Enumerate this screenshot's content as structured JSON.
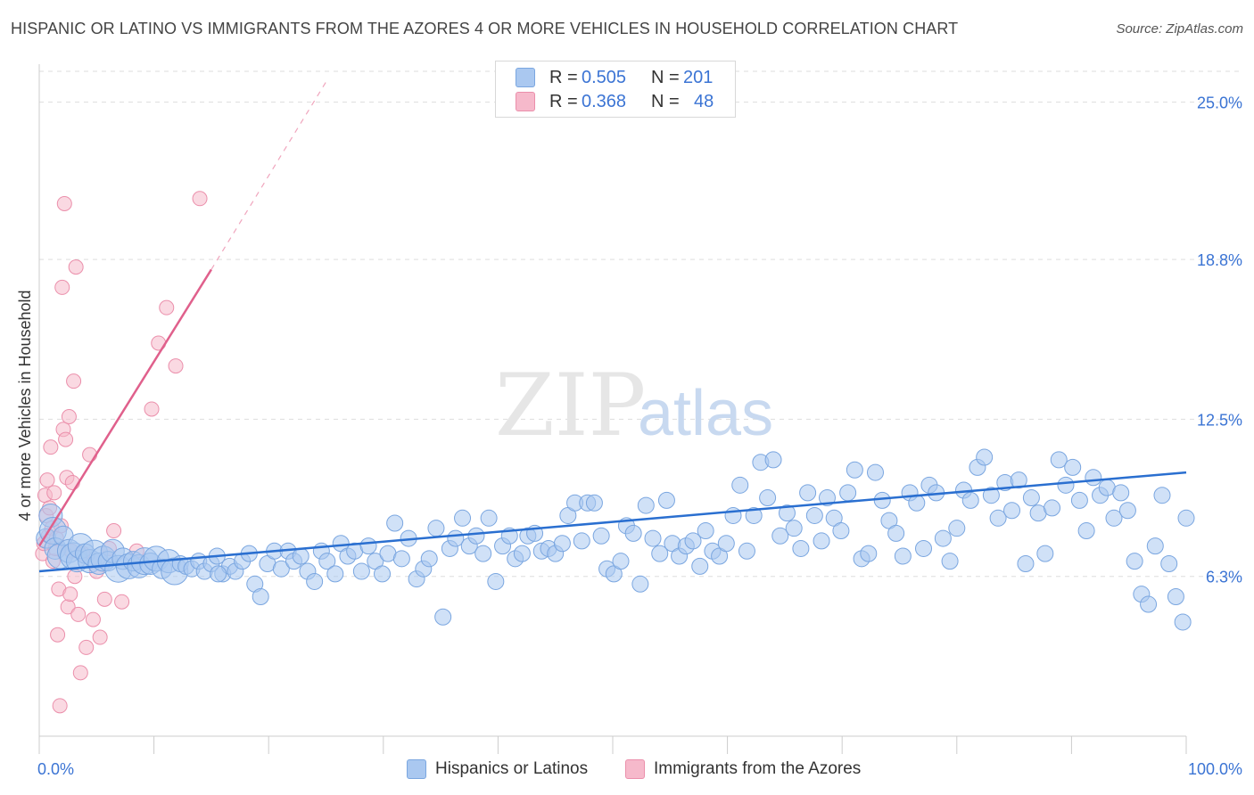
{
  "title": "HISPANIC OR LATINO VS IMMIGRANTS FROM THE AZORES 4 OR MORE VEHICLES IN HOUSEHOLD CORRELATION CHART",
  "source": "Source: ZipAtlas.com",
  "watermark": {
    "zip": "ZIP",
    "atlas": "atlas"
  },
  "colors": {
    "blue_fill": "#aac8f0",
    "blue_stroke": "#7aa6e0",
    "blue_line": "#2a6fd0",
    "pink_fill": "#f6b9cb",
    "pink_stroke": "#eb8fab",
    "pink_line": "#e0608c",
    "tick_label": "#3b74d4",
    "grid": "#dddddd"
  },
  "legend_top": [
    {
      "r_label": "R =",
      "r_value": "0.505",
      "n_label": "N =",
      "n_value": "201",
      "color": "blue"
    },
    {
      "r_label": "R =",
      "r_value": "0.368",
      "n_label": "N =",
      "n_value": "48",
      "color": "pink"
    }
  ],
  "legend_bottom": [
    {
      "label": "Hispanics or Latinos",
      "color": "blue"
    },
    {
      "label": "Immigrants from the Azores",
      "color": "pink"
    }
  ],
  "chart_data": {
    "type": "scatter",
    "title": "HISPANIC OR LATINO VS IMMIGRANTS FROM THE AZORES 4 OR MORE VEHICLES IN HOUSEHOLD CORRELATION CHART",
    "xlabel": "",
    "ylabel": "4 or more Vehicles in Household",
    "xlim": [
      0,
      100
    ],
    "ylim": [
      0,
      26.5
    ],
    "x_tick_labels": [
      "0.0%",
      "100.0%"
    ],
    "y_ticks": [
      6.3,
      12.5,
      18.8,
      25.0
    ],
    "y_tick_labels": [
      "6.3%",
      "12.5%",
      "18.8%",
      "25.0%"
    ],
    "grid": true,
    "legend_position": "top-center",
    "series": [
      {
        "name": "Hispanics or Latinos",
        "color": "blue",
        "trendline": {
          "x": [
            0,
            100
          ],
          "y": [
            6.5,
            10.4
          ]
        },
        "points": [
          [
            0.6,
            7.8
          ],
          [
            1,
            8.7
          ],
          [
            1.2,
            8.1
          ],
          [
            1.4,
            7.4
          ],
          [
            1.8,
            7.1
          ],
          [
            2.1,
            7.9
          ],
          [
            2.6,
            7.3
          ],
          [
            3.0,
            7.1
          ],
          [
            3.3,
            6.9
          ],
          [
            3.6,
            7.5
          ],
          [
            4.0,
            7.2
          ],
          [
            4.4,
            6.9
          ],
          [
            4.8,
            7.2
          ],
          [
            5.2,
            6.8
          ],
          [
            5.6,
            7.0
          ],
          [
            6.0,
            6.9
          ],
          [
            6.4,
            7.3
          ],
          [
            6.9,
            6.6
          ],
          [
            7.3,
            7.0
          ],
          [
            7.8,
            6.7
          ],
          [
            8.2,
            6.9
          ],
          [
            8.7,
            6.7
          ],
          [
            9.2,
            6.9
          ],
          [
            9.7,
            6.8
          ],
          [
            10.2,
            7.0
          ],
          [
            10.7,
            6.6
          ],
          [
            11.3,
            6.9
          ],
          [
            11.8,
            6.5
          ],
          [
            12.3,
            6.8
          ],
          [
            12.8,
            6.7
          ],
          [
            13.3,
            6.6
          ],
          [
            13.9,
            6.9
          ],
          [
            14.4,
            6.5
          ],
          [
            15.0,
            6.8
          ],
          [
            15.5,
            7.1
          ],
          [
            16.0,
            6.4
          ],
          [
            16.6,
            6.7
          ],
          [
            17.1,
            6.5
          ],
          [
            17.7,
            6.9
          ],
          [
            18.3,
            7.2
          ],
          [
            18.8,
            6.0
          ],
          [
            19.3,
            5.5
          ],
          [
            19.9,
            6.8
          ],
          [
            20.5,
            7.3
          ],
          [
            21.1,
            6.6
          ],
          [
            21.7,
            7.3
          ],
          [
            22.2,
            6.9
          ],
          [
            22.8,
            7.1
          ],
          [
            23.4,
            6.5
          ],
          [
            24.0,
            6.1
          ],
          [
            24.6,
            7.3
          ],
          [
            25.1,
            6.9
          ],
          [
            25.8,
            6.4
          ],
          [
            26.3,
            7.6
          ],
          [
            26.9,
            7.1
          ],
          [
            27.5,
            7.3
          ],
          [
            28.1,
            6.5
          ],
          [
            28.7,
            7.5
          ],
          [
            29.3,
            6.9
          ],
          [
            29.9,
            6.4
          ],
          [
            30.4,
            7.2
          ],
          [
            31.0,
            8.4
          ],
          [
            31.6,
            7.0
          ],
          [
            32.2,
            7.8
          ],
          [
            32.9,
            6.2
          ],
          [
            33.5,
            6.6
          ],
          [
            34.0,
            7.0
          ],
          [
            34.6,
            8.2
          ],
          [
            35.2,
            4.7
          ],
          [
            35.8,
            7.4
          ],
          [
            36.3,
            7.8
          ],
          [
            36.9,
            8.6
          ],
          [
            37.5,
            7.5
          ],
          [
            38.1,
            7.9
          ],
          [
            38.7,
            7.2
          ],
          [
            39.2,
            8.6
          ],
          [
            39.8,
            6.1
          ],
          [
            40.4,
            7.5
          ],
          [
            41.0,
            7.9
          ],
          [
            41.5,
            7.0
          ],
          [
            42.1,
            7.2
          ],
          [
            42.6,
            7.9
          ],
          [
            43.2,
            8.0
          ],
          [
            43.8,
            7.3
          ],
          [
            44.4,
            7.4
          ],
          [
            45.0,
            7.2
          ],
          [
            45.6,
            7.6
          ],
          [
            46.1,
            8.7
          ],
          [
            46.7,
            9.2
          ],
          [
            47.3,
            7.7
          ],
          [
            47.8,
            9.2
          ],
          [
            48.4,
            9.2
          ],
          [
            49.0,
            7.9
          ],
          [
            49.5,
            6.6
          ],
          [
            50.1,
            6.4
          ],
          [
            50.7,
            6.9
          ],
          [
            51.2,
            8.3
          ],
          [
            51.8,
            8.0
          ],
          [
            52.4,
            6.0
          ],
          [
            52.9,
            9.1
          ],
          [
            53.5,
            7.8
          ],
          [
            54.1,
            7.2
          ],
          [
            54.7,
            9.3
          ],
          [
            55.2,
            7.6
          ],
          [
            55.8,
            7.1
          ],
          [
            56.4,
            7.5
          ],
          [
            57.0,
            7.7
          ],
          [
            57.6,
            6.7
          ],
          [
            58.1,
            8.1
          ],
          [
            58.7,
            7.3
          ],
          [
            59.3,
            7.1
          ],
          [
            59.9,
            7.6
          ],
          [
            60.5,
            8.7
          ],
          [
            61.1,
            9.9
          ],
          [
            61.7,
            7.3
          ],
          [
            62.3,
            8.7
          ],
          [
            62.9,
            10.8
          ],
          [
            63.5,
            9.4
          ],
          [
            64.0,
            10.9
          ],
          [
            64.6,
            7.9
          ],
          [
            65.2,
            8.8
          ],
          [
            65.8,
            8.2
          ],
          [
            66.4,
            7.4
          ],
          [
            67.0,
            9.6
          ],
          [
            67.6,
            8.7
          ],
          [
            68.2,
            7.7
          ],
          [
            68.7,
            9.4
          ],
          [
            69.3,
            8.6
          ],
          [
            69.9,
            8.1
          ],
          [
            70.5,
            9.6
          ],
          [
            71.1,
            10.5
          ],
          [
            71.7,
            7.0
          ],
          [
            72.3,
            7.2
          ],
          [
            72.9,
            10.4
          ],
          [
            73.5,
            9.3
          ],
          [
            74.1,
            8.5
          ],
          [
            74.7,
            8.0
          ],
          [
            75.3,
            7.1
          ],
          [
            75.9,
            9.6
          ],
          [
            76.5,
            9.2
          ],
          [
            77.1,
            7.4
          ],
          [
            77.6,
            9.9
          ],
          [
            78.2,
            9.6
          ],
          [
            78.8,
            7.8
          ],
          [
            79.4,
            6.9
          ],
          [
            80.0,
            8.2
          ],
          [
            80.6,
            9.7
          ],
          [
            81.2,
            9.3
          ],
          [
            81.8,
            10.6
          ],
          [
            82.4,
            11.0
          ],
          [
            83.0,
            9.5
          ],
          [
            83.6,
            8.6
          ],
          [
            84.2,
            10.0
          ],
          [
            84.8,
            8.9
          ],
          [
            85.4,
            10.1
          ],
          [
            86.0,
            6.8
          ],
          [
            86.5,
            9.4
          ],
          [
            87.1,
            8.8
          ],
          [
            87.7,
            7.2
          ],
          [
            88.3,
            9.0
          ],
          [
            88.9,
            10.9
          ],
          [
            89.5,
            9.9
          ],
          [
            90.1,
            10.6
          ],
          [
            90.7,
            9.3
          ],
          [
            91.3,
            8.1
          ],
          [
            91.9,
            10.2
          ],
          [
            92.5,
            9.5
          ],
          [
            93.1,
            9.8
          ],
          [
            93.7,
            8.6
          ],
          [
            94.3,
            9.6
          ],
          [
            94.9,
            8.9
          ],
          [
            95.5,
            6.9
          ],
          [
            96.1,
            5.6
          ],
          [
            96.7,
            5.2
          ],
          [
            97.3,
            7.5
          ],
          [
            97.9,
            9.5
          ],
          [
            98.5,
            6.8
          ],
          [
            99.1,
            5.5
          ],
          [
            99.7,
            4.5
          ],
          [
            100.0,
            8.6
          ],
          [
            15.6,
            6.4
          ]
        ]
      },
      {
        "name": "Immigrants from the Azores",
        "color": "pink",
        "trendline": {
          "x": [
            0,
            15
          ],
          "y": [
            7.5,
            18.4
          ],
          "dashed_extension": {
            "x": [
              15,
              25
            ],
            "y": [
              18.4,
              25.8
            ]
          }
        },
        "points": [
          [
            0.3,
            7.2
          ],
          [
            0.4,
            7.6
          ],
          [
            0.5,
            9.5
          ],
          [
            0.6,
            8.7
          ],
          [
            0.7,
            10.1
          ],
          [
            0.8,
            7.9
          ],
          [
            0.9,
            9.0
          ],
          [
            1.0,
            11.4
          ],
          [
            1.1,
            8.2
          ],
          [
            1.2,
            6.9
          ],
          [
            1.3,
            9.6
          ],
          [
            1.4,
            7.4
          ],
          [
            1.5,
            7.8
          ],
          [
            1.6,
            4.0
          ],
          [
            1.7,
            5.8
          ],
          [
            1.8,
            1.2
          ],
          [
            1.9,
            8.3
          ],
          [
            2.0,
            17.7
          ],
          [
            2.1,
            12.1
          ],
          [
            2.2,
            21.0
          ],
          [
            2.3,
            11.7
          ],
          [
            2.4,
            10.2
          ],
          [
            2.5,
            5.1
          ],
          [
            2.6,
            12.6
          ],
          [
            2.7,
            5.6
          ],
          [
            2.8,
            7.3
          ],
          [
            2.9,
            10.0
          ],
          [
            3.0,
            14.0
          ],
          [
            3.1,
            6.3
          ],
          [
            3.2,
            18.5
          ],
          [
            3.4,
            4.8
          ],
          [
            3.6,
            2.5
          ],
          [
            3.8,
            7.2
          ],
          [
            4.1,
            3.5
          ],
          [
            4.4,
            11.1
          ],
          [
            4.7,
            4.6
          ],
          [
            5.0,
            6.5
          ],
          [
            5.3,
            3.9
          ],
          [
            5.7,
            5.4
          ],
          [
            6.1,
            7.4
          ],
          [
            6.5,
            8.1
          ],
          [
            7.2,
            5.3
          ],
          [
            8.5,
            7.3
          ],
          [
            9.8,
            12.9
          ],
          [
            10.4,
            15.5
          ],
          [
            11.1,
            16.9
          ],
          [
            11.9,
            14.6
          ],
          [
            14.0,
            21.2
          ]
        ]
      }
    ]
  }
}
